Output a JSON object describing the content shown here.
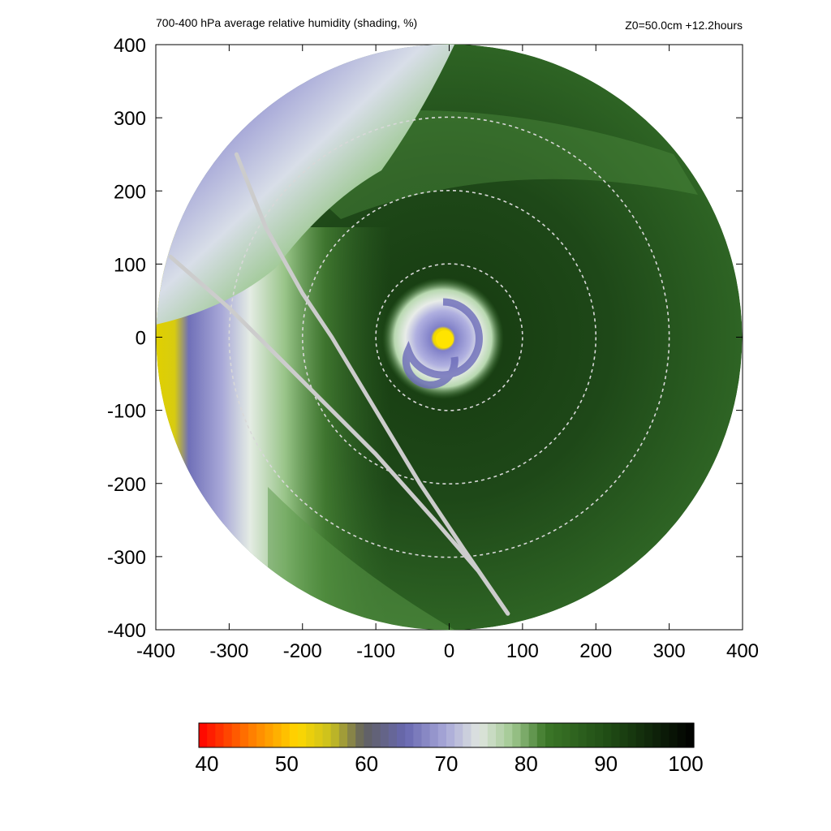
{
  "chart_data": {
    "type": "heatmap",
    "title": "700-400 hPa average relative humidity (shading, %)",
    "subtitle": "Z0=50.0cm  +12.2hours",
    "xlabel": "",
    "ylabel": "",
    "xlim": [
      -400,
      400
    ],
    "ylim": [
      -400,
      400
    ],
    "x_ticks": [
      "-400",
      "-300",
      "-200",
      "-100",
      "0",
      "100",
      "200",
      "300",
      "400"
    ],
    "y_ticks": [
      "400",
      "300",
      "200",
      "100",
      "0",
      "-100",
      "-200",
      "-300",
      "-400"
    ],
    "domain_radius": 400,
    "range_rings": [
      100,
      200,
      300
    ],
    "colorbar": {
      "min": 40,
      "max": 100,
      "ticks": [
        "40",
        "50",
        "60",
        "70",
        "80",
        "90",
        "100"
      ],
      "colors": [
        {
          "value": 40,
          "color": "#ff0000"
        },
        {
          "value": 46,
          "color": "#ff7800"
        },
        {
          "value": 52,
          "color": "#ffd800"
        },
        {
          "value": 56,
          "color": "#c8c020"
        },
        {
          "value": 60,
          "color": "#606060"
        },
        {
          "value": 65,
          "color": "#6868b0"
        },
        {
          "value": 70,
          "color": "#a8a8d8"
        },
        {
          "value": 74,
          "color": "#e0e6e0"
        },
        {
          "value": 78,
          "color": "#a0c890"
        },
        {
          "value": 82,
          "color": "#3c7828"
        },
        {
          "value": 90,
          "color": "#1e4a14"
        },
        {
          "value": 100,
          "color": "#000000"
        }
      ]
    },
    "tracks": [
      {
        "points": [
          [
            -380,
            110
          ],
          [
            -300,
            40
          ],
          [
            -200,
            -60
          ],
          [
            -100,
            -160
          ],
          [
            -20,
            -250
          ],
          [
            40,
            -320
          ],
          [
            80,
            -378
          ]
        ]
      },
      {
        "points": [
          [
            -290,
            250
          ],
          [
            -250,
            150
          ],
          [
            -200,
            60
          ],
          [
            -160,
            0
          ],
          [
            -100,
            -100
          ],
          [
            -40,
            -200
          ],
          [
            20,
            -290
          ],
          [
            80,
            -378
          ]
        ]
      }
    ],
    "features": {
      "eye_center": [
        0,
        0
      ],
      "eye_value": 52,
      "eyewall_radius": 70
    }
  }
}
